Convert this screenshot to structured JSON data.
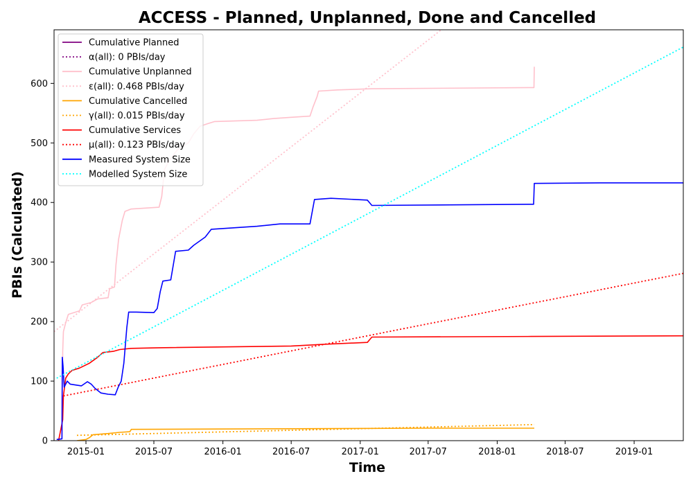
{
  "chart_data": {
    "type": "line",
    "title": "ACCESS - Planned, Unplanned, Done  and Cancelled",
    "xlabel": "Time",
    "ylabel": "PBIs (Calculated)",
    "xlim": [
      "2014-10-08",
      "2019-05-12"
    ],
    "ylim": [
      0,
      690
    ],
    "x_ticks": [
      "2015-01",
      "2015-07",
      "2016-01",
      "2016-07",
      "2017-01",
      "2017-07",
      "2018-01",
      "2018-07",
      "2019-01"
    ],
    "y_ticks": [
      0,
      100,
      200,
      300,
      400,
      500,
      600
    ],
    "grid": false,
    "legend_position": "top-left",
    "series": [
      {
        "name": "Cumulative Planned",
        "color": "#800080",
        "style": "solid",
        "points": [
          [
            "2014-10-22",
            0
          ]
        ]
      },
      {
        "name": "α(all): 0 PBIs/day",
        "color": "#800080",
        "style": "dotted",
        "points": [
          [
            "2014-10-22",
            0
          ]
        ]
      },
      {
        "name": "Cumulative Unplanned",
        "color": "#ffc0cb",
        "style": "solid",
        "points": [
          [
            "2014-10-15",
            2
          ],
          [
            "2014-10-29",
            3
          ],
          [
            "2014-10-31",
            150
          ],
          [
            "2014-11-02",
            183
          ],
          [
            "2014-11-08",
            198
          ],
          [
            "2014-11-15",
            212
          ],
          [
            "2014-12-15",
            218
          ],
          [
            "2014-12-22",
            228
          ],
          [
            "2015-01-15",
            232
          ],
          [
            "2015-02-01",
            238
          ],
          [
            "2015-03-01",
            240
          ],
          [
            "2015-03-05",
            255
          ],
          [
            "2015-03-18",
            258
          ],
          [
            "2015-03-22",
            295
          ],
          [
            "2015-03-29",
            338
          ],
          [
            "2015-04-08",
            370
          ],
          [
            "2015-04-15",
            385
          ],
          [
            "2015-05-01",
            389
          ],
          [
            "2015-07-15",
            392
          ],
          [
            "2015-07-22",
            410
          ],
          [
            "2015-07-29",
            455
          ],
          [
            "2015-08-10",
            470
          ],
          [
            "2015-09-01",
            488
          ],
          [
            "2015-10-01",
            500
          ],
          [
            "2015-10-15",
            515
          ],
          [
            "2015-11-01",
            528
          ],
          [
            "2015-11-20",
            532
          ],
          [
            "2015-12-10",
            536
          ],
          [
            "2016-04-01",
            538
          ],
          [
            "2016-05-15",
            541
          ],
          [
            "2016-07-01",
            543
          ],
          [
            "2016-08-20",
            545
          ],
          [
            "2016-08-28",
            560
          ],
          [
            "2016-09-08",
            578
          ],
          [
            "2016-09-12",
            587
          ],
          [
            "2016-11-01",
            589
          ],
          [
            "2017-02-01",
            591
          ],
          [
            "2018-04-09",
            593
          ],
          [
            "2018-04-10",
            628
          ]
        ]
      },
      {
        "name": "ε(all): 0.468 PBIs/day",
        "color": "#ffc0cb",
        "style": "dotted",
        "points": [
          [
            "2014-10-08",
            183
          ],
          [
            "2017-08-05",
            690
          ]
        ]
      },
      {
        "name": "Cumulative Cancelled",
        "color": "#ffa500",
        "style": "solid",
        "points": [
          [
            "2014-12-08",
            0
          ],
          [
            "2015-01-01",
            2
          ],
          [
            "2015-01-10",
            5
          ],
          [
            "2015-01-20",
            10
          ],
          [
            "2015-03-01",
            12
          ],
          [
            "2015-04-01",
            14
          ],
          [
            "2015-04-28",
            15
          ],
          [
            "2015-05-02",
            19
          ],
          [
            "2016-07-01",
            20
          ],
          [
            "2017-07-01",
            21
          ],
          [
            "2018-04-10",
            21
          ]
        ]
      },
      {
        "name": "γ(all): 0.015 PBIs/day",
        "color": "#ffa500",
        "style": "dotted",
        "points": [
          [
            "2014-12-08",
            9
          ],
          [
            "2018-04-10",
            27
          ]
        ]
      },
      {
        "name": "Cumulative Services",
        "color": "#ff0000",
        "style": "solid",
        "points": [
          [
            "2014-10-20",
            0
          ],
          [
            "2014-10-31",
            35
          ],
          [
            "2014-11-02",
            75
          ],
          [
            "2014-11-08",
            105
          ],
          [
            "2014-11-15",
            112
          ],
          [
            "2014-11-25",
            118
          ],
          [
            "2014-12-15",
            122
          ],
          [
            "2015-01-10",
            130
          ],
          [
            "2015-02-01",
            140
          ],
          [
            "2015-02-15",
            148
          ],
          [
            "2015-03-15",
            150
          ],
          [
            "2015-04-01",
            153
          ],
          [
            "2015-05-01",
            155
          ],
          [
            "2015-07-15",
            156
          ],
          [
            "2016-07-01",
            159
          ],
          [
            "2016-10-01",
            162
          ],
          [
            "2017-01-20",
            165
          ],
          [
            "2017-02-01",
            174
          ],
          [
            "2018-04-01",
            175
          ],
          [
            "2019-05-12",
            176
          ]
        ]
      },
      {
        "name": "μ(all): 0.123 PBIs/day",
        "color": "#ff0000",
        "style": "dotted",
        "points": [
          [
            "2014-11-02",
            75
          ],
          [
            "2019-05-12",
            281
          ]
        ]
      },
      {
        "name": "Measured System Size",
        "color": "#0000ff",
        "style": "solid",
        "points": [
          [
            "2014-10-15",
            2
          ],
          [
            "2014-10-29",
            3
          ],
          [
            "2014-10-30",
            140
          ],
          [
            "2014-11-01",
            125
          ],
          [
            "2014-11-04",
            90
          ],
          [
            "2014-11-12",
            100
          ],
          [
            "2014-11-20",
            95
          ],
          [
            "2014-12-20",
            92
          ],
          [
            "2015-01-05",
            99
          ],
          [
            "2015-01-15",
            95
          ],
          [
            "2015-01-25",
            88
          ],
          [
            "2015-02-10",
            80
          ],
          [
            "2015-03-01",
            78
          ],
          [
            "2015-03-20",
            77
          ],
          [
            "2015-03-28",
            90
          ],
          [
            "2015-04-05",
            100
          ],
          [
            "2015-04-12",
            130
          ],
          [
            "2015-04-20",
            190
          ],
          [
            "2015-04-25",
            216
          ],
          [
            "2015-05-15",
            216
          ],
          [
            "2015-07-01",
            215
          ],
          [
            "2015-07-10",
            222
          ],
          [
            "2015-07-18",
            250
          ],
          [
            "2015-07-25",
            268
          ],
          [
            "2015-08-15",
            270
          ],
          [
            "2015-08-28",
            318
          ],
          [
            "2015-10-01",
            320
          ],
          [
            "2015-10-15",
            328
          ],
          [
            "2015-11-15",
            342
          ],
          [
            "2015-12-01",
            355
          ],
          [
            "2016-04-01",
            360
          ],
          [
            "2016-06-01",
            364
          ],
          [
            "2016-08-20",
            364
          ],
          [
            "2016-09-01",
            405
          ],
          [
            "2016-10-15",
            407
          ],
          [
            "2017-01-20",
            404
          ],
          [
            "2017-02-01",
            395
          ],
          [
            "2018-04-08",
            397
          ],
          [
            "2018-04-10",
            432
          ],
          [
            "2018-10-01",
            433
          ],
          [
            "2019-05-12",
            433
          ]
        ]
      },
      {
        "name": "Modelled System Size",
        "color": "#00ffff",
        "style": "dotted",
        "points": [
          [
            "2014-10-15",
            105
          ],
          [
            "2019-05-12",
            661
          ]
        ]
      }
    ]
  }
}
